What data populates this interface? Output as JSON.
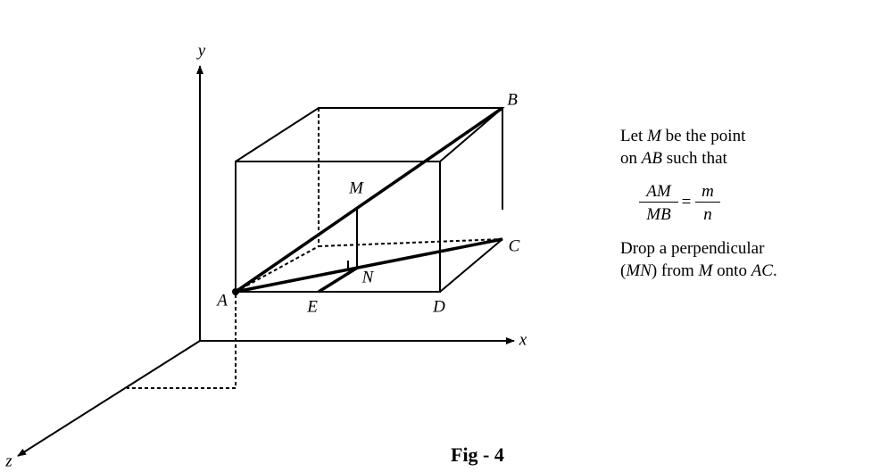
{
  "axes": {
    "x": "x",
    "y": "y",
    "z": "z"
  },
  "points": {
    "A": "A",
    "B": "B",
    "C": "C",
    "D": "D",
    "E": "E",
    "M": "M",
    "N": "N"
  },
  "note": {
    "line1": [
      "Let ",
      "M",
      " be the point"
    ],
    "line2": [
      "on ",
      "AB",
      " such that"
    ],
    "fraction": {
      "left_num": "AM",
      "left_den": "MB",
      "equals": "=",
      "right_num": "m",
      "right_den": "n"
    },
    "line3": [
      "Drop a perpendicular"
    ],
    "line4": [
      "(",
      "MN",
      ") from ",
      "M",
      " onto ",
      "AC",
      "."
    ]
  },
  "caption": "Fig - 4"
}
